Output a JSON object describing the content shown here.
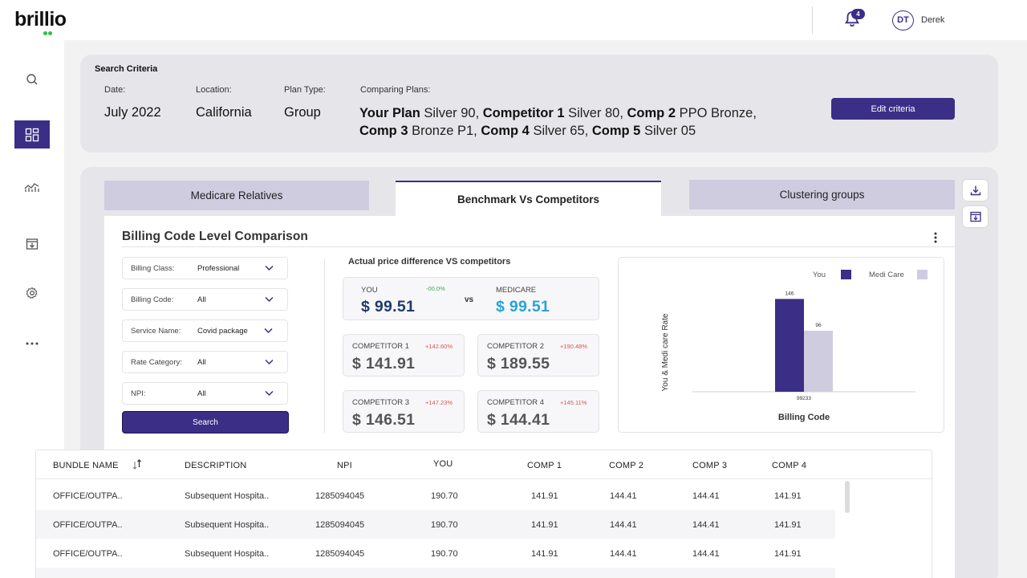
{
  "brand": {
    "logo": "brillio",
    "accent": "#3b2e86"
  },
  "header": {
    "notification_count": "4",
    "avatar_initials": "DT",
    "username": "Derek"
  },
  "sidebar": {
    "items": [
      "search-icon",
      "dashboard-icon",
      "analytics-icon",
      "download-box-icon",
      "settings-icon",
      "more-icon"
    ],
    "active": "dashboard-icon"
  },
  "criteria": {
    "title": "Search Criteria",
    "date_label": "Date:",
    "date_value": "July 2022",
    "location_label": "Location:",
    "location_value": "California",
    "plan_type_label": "Plan Type:",
    "plan_type_value": "Group",
    "comparing_label": "Comparing Plans:",
    "plans": [
      {
        "key": "Your Plan",
        "value": "Silver 90,"
      },
      {
        "key": "Competitor 1",
        "value": "Silver 80,"
      },
      {
        "key": "Comp 2",
        "value": "PPO Bronze,"
      },
      {
        "key": "Comp 3",
        "value": "Bronze P1,"
      },
      {
        "key": "Comp 4",
        "value": "Silver 65,"
      },
      {
        "key": "Comp 5",
        "value": "Silver 05"
      }
    ],
    "edit_label": "Edit criteria"
  },
  "tabs": [
    "Medicare Relatives",
    "Benchmark Vs Competitors",
    "Clustering groups"
  ],
  "card": {
    "title": "Billing Code Level Comparison",
    "filters": [
      {
        "label": "Billing Class:",
        "value": "Professional"
      },
      {
        "label": "Billing Code:",
        "value": "All"
      },
      {
        "label": "Service Name:",
        "value": "Covid package"
      },
      {
        "label": "Rate Category:",
        "value": "All"
      },
      {
        "label": "NPI:",
        "value": "All"
      }
    ],
    "search_label": "Search",
    "diff_title": "Actual price difference VS competitors",
    "you": {
      "label": "YOU",
      "pct": "-00.0%",
      "value": "$ 99.51"
    },
    "vs": "vs",
    "medicare": {
      "label": "MEDICARE",
      "value": "$ 99.51"
    },
    "competitors": [
      {
        "label": "COMPETITOR 1",
        "pct": "+142.60%",
        "value": "$ 141.91"
      },
      {
        "label": "COMPETITOR 2",
        "pct": "+190.48%",
        "value": "$ 189.55"
      },
      {
        "label": "COMPETITOR 3",
        "pct": "+147.23%",
        "value": "$ 146.51"
      },
      {
        "label": "COMPETITOR 4",
        "pct": "+145.11%",
        "value": "$ 144.41"
      }
    ],
    "colors": {
      "you_price": "#1f3b6b",
      "medicare_price": "#29a3d6",
      "comp_price": "#555555"
    }
  },
  "chart_data": {
    "type": "bar",
    "categories": [
      "99233"
    ],
    "series": [
      {
        "name": "You",
        "values": [
          146
        ],
        "color": "#3b2e86"
      },
      {
        "name": "Medi Care",
        "values": [
          96
        ],
        "color": "#cfcce0"
      }
    ],
    "xlabel": "Billing Code",
    "ylabel": "You & Medi care Rate",
    "ylim": [
      0,
      200
    ],
    "legend": "top-right"
  },
  "table": {
    "columns": [
      "BUNDLE NAME",
      "DESCRIPTION",
      "NPI",
      "YOU",
      "COMP 1",
      "COMP 2",
      "COMP 3",
      "COMP 4"
    ],
    "rows": [
      [
        "OFFICE/OUTPA..",
        "Subsequent Hospita..",
        "1285094045",
        "190.70",
        "141.91",
        "144.41",
        "144.41",
        "141.91"
      ],
      [
        "OFFICE/OUTPA..",
        "Subsequent Hospita..",
        "1285094045",
        "190.70",
        "141.91",
        "144.41",
        "144.41",
        "141.91"
      ],
      [
        "OFFICE/OUTPA..",
        "Subsequent Hospita..",
        "1285094045",
        "190.70",
        "141.91",
        "144.41",
        "144.41",
        "141.91"
      ]
    ]
  }
}
